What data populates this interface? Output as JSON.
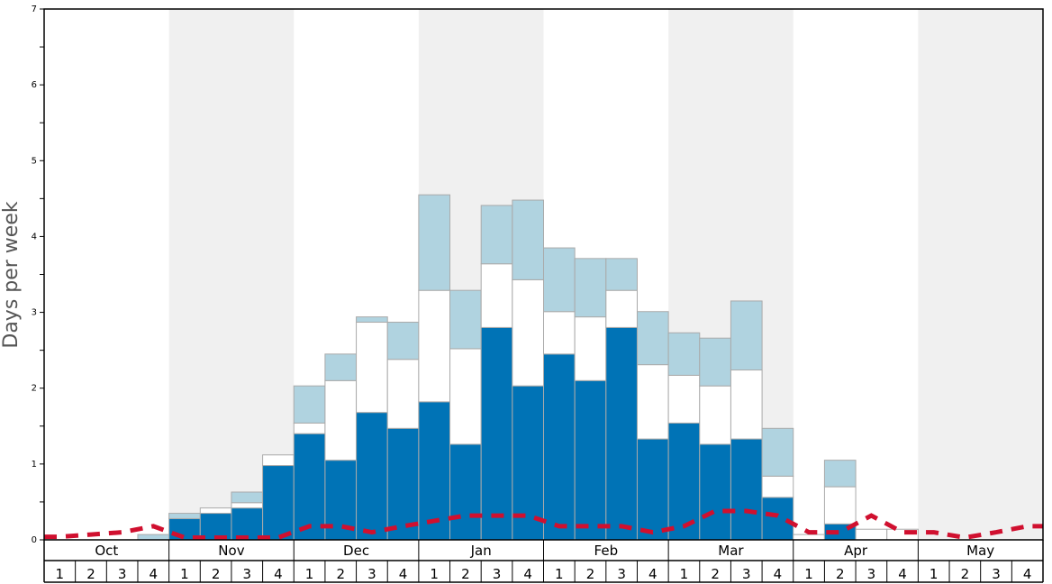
{
  "chart_data": {
    "type": "bar",
    "stacked": true,
    "ylabel": "Days per week",
    "ylim": [
      0,
      7
    ],
    "y_ticks": [
      0,
      1,
      2,
      3,
      4,
      5,
      6,
      7
    ],
    "months": [
      "Oct",
      "Nov",
      "Dec",
      "Jan",
      "Feb",
      "Mar",
      "Apr",
      "May"
    ],
    "week_labels": [
      "1",
      "2",
      "3",
      "4"
    ],
    "shaded_months": [
      "Nov",
      "Jan",
      "Mar",
      "May"
    ],
    "colors": {
      "dark": "#0073b6",
      "white": "#ffffff",
      "light": "#b0d3e0",
      "line": "#d0102f",
      "shade": "#f0f0f0",
      "bar_edge": "#aaaaaa"
    },
    "series": [
      {
        "key": "dark",
        "values": [
          0,
          0,
          0,
          0,
          0.28,
          0.35,
          0.42,
          0.98,
          1.4,
          1.05,
          1.68,
          1.47,
          1.82,
          1.26,
          2.8,
          2.03,
          2.45,
          2.1,
          2.8,
          1.33,
          1.54,
          1.26,
          1.33,
          0.56,
          0,
          0.21,
          0,
          0,
          0,
          0,
          0,
          0
        ]
      },
      {
        "key": "white",
        "values": [
          0,
          0,
          0,
          0,
          0,
          0.07,
          0.07,
          0.14,
          0.14,
          1.05,
          1.19,
          0.91,
          1.47,
          1.26,
          0.84,
          1.4,
          0.56,
          0.84,
          0.49,
          0.98,
          0.63,
          0.77,
          0.91,
          0.28,
          0.07,
          0.49,
          0.14,
          0.14,
          0,
          0,
          0,
          0
        ]
      },
      {
        "key": "light",
        "values": [
          0,
          0,
          0,
          0.07,
          0.07,
          0,
          0.14,
          0,
          0.49,
          0.35,
          0.07,
          0.49,
          1.26,
          0.77,
          0.77,
          1.05,
          0.84,
          0.77,
          0.42,
          0.7,
          0.56,
          0.63,
          0.91,
          0.63,
          0,
          0.35,
          0,
          0,
          0,
          0,
          0,
          0
        ]
      }
    ],
    "line": [
      0.04,
      0.07,
      0.1,
      0.18,
      0.03,
      0.03,
      0.03,
      0.03,
      0.18,
      0.18,
      0.1,
      0.18,
      0.25,
      0.32,
      0.32,
      0.32,
      0.18,
      0.18,
      0.18,
      0.1,
      0.18,
      0.38,
      0.38,
      0.32,
      0.1,
      0.1,
      0.32,
      0.1,
      0.1,
      0.03,
      0.1,
      0.18
    ]
  }
}
